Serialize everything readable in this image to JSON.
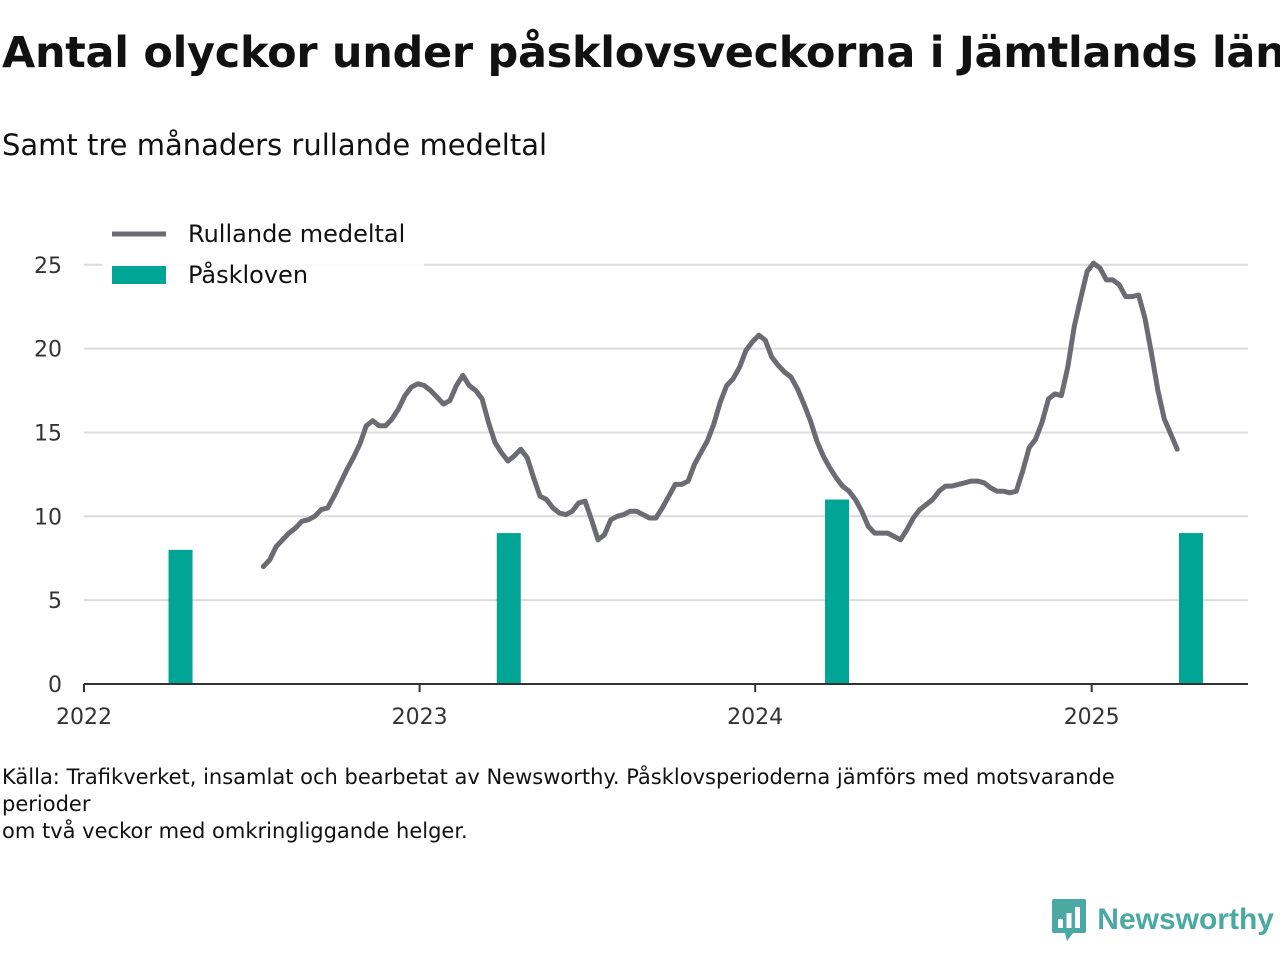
{
  "title": "Antal olyckor under påsklovsveckorna i Jämtlands län",
  "subtitle": "Samt tre månaders rullande medeltal",
  "footnote": {
    "line1": "Källa: Trafikverket, insamlat och bearbetat av Newsworthy. Påsklovsperioderna jämförs med motsvarande",
    "line2": "perioder",
    "line3": "om två veckor med omkringliggande helger."
  },
  "brand": {
    "name": "Newsworthy",
    "icon": "newsworthy-logo-icon",
    "color": "#4aa9a2"
  },
  "chart_data": {
    "type": "bar+line",
    "xlabel": "",
    "ylabel": "",
    "x_range": [
      "2022-01-01",
      "2025-06-20"
    ],
    "x_ticks": [
      "2022",
      "2023",
      "2024",
      "2025"
    ],
    "ylim": [
      0,
      26
    ],
    "y_ticks": [
      0,
      5,
      10,
      15,
      20,
      25
    ],
    "grid": true,
    "legend_position": "top-left",
    "series": [
      {
        "name": "Rullande medeltal",
        "kind": "line",
        "color": "#6b6b72",
        "points": [
          [
            "2022-07-15",
            7.0
          ],
          [
            "2022-07-22",
            7.4
          ],
          [
            "2022-07-29",
            8.2
          ],
          [
            "2022-08-05",
            8.6
          ],
          [
            "2022-08-12",
            9.0
          ],
          [
            "2022-08-19",
            9.3
          ],
          [
            "2022-08-26",
            9.7
          ],
          [
            "2022-09-02",
            9.8
          ],
          [
            "2022-09-09",
            10.0
          ],
          [
            "2022-09-16",
            10.4
          ],
          [
            "2022-09-23",
            10.5
          ],
          [
            "2022-09-30",
            11.2
          ],
          [
            "2022-10-07",
            12.0
          ],
          [
            "2022-10-14",
            12.8
          ],
          [
            "2022-10-21",
            13.5
          ],
          [
            "2022-10-28",
            14.3
          ],
          [
            "2022-11-04",
            15.4
          ],
          [
            "2022-11-11",
            15.7
          ],
          [
            "2022-11-18",
            15.4
          ],
          [
            "2022-11-25",
            15.4
          ],
          [
            "2022-12-02",
            15.8
          ],
          [
            "2022-12-09",
            16.4
          ],
          [
            "2022-12-16",
            17.2
          ],
          [
            "2022-12-23",
            17.7
          ],
          [
            "2022-12-30",
            17.9
          ],
          [
            "2023-01-06",
            17.8
          ],
          [
            "2023-01-13",
            17.5
          ],
          [
            "2023-01-20",
            17.1
          ],
          [
            "2023-01-27",
            16.7
          ],
          [
            "2023-02-03",
            16.9
          ],
          [
            "2023-02-10",
            17.8
          ],
          [
            "2023-02-17",
            18.4
          ],
          [
            "2023-02-24",
            17.8
          ],
          [
            "2023-03-03",
            17.5
          ],
          [
            "2023-03-10",
            17.0
          ],
          [
            "2023-03-17",
            15.6
          ],
          [
            "2023-03-24",
            14.4
          ],
          [
            "2023-03-31",
            13.8
          ],
          [
            "2023-04-07",
            13.3
          ],
          [
            "2023-04-14",
            13.6
          ],
          [
            "2023-04-21",
            14.0
          ],
          [
            "2023-04-28",
            13.5
          ],
          [
            "2023-05-05",
            12.3
          ],
          [
            "2023-05-12",
            11.2
          ],
          [
            "2023-05-19",
            11.0
          ],
          [
            "2023-05-26",
            10.5
          ],
          [
            "2023-06-02",
            10.2
          ],
          [
            "2023-06-09",
            10.1
          ],
          [
            "2023-06-16",
            10.3
          ],
          [
            "2023-06-23",
            10.8
          ],
          [
            "2023-06-30",
            10.9
          ],
          [
            "2023-07-07",
            9.8
          ],
          [
            "2023-07-14",
            8.6
          ],
          [
            "2023-07-21",
            8.9
          ],
          [
            "2023-07-28",
            9.8
          ],
          [
            "2023-08-04",
            10.0
          ],
          [
            "2023-08-11",
            10.1
          ],
          [
            "2023-08-18",
            10.3
          ],
          [
            "2023-08-25",
            10.3
          ],
          [
            "2023-09-01",
            10.1
          ],
          [
            "2023-09-08",
            9.9
          ],
          [
            "2023-09-15",
            9.9
          ],
          [
            "2023-09-22",
            10.5
          ],
          [
            "2023-09-29",
            11.2
          ],
          [
            "2023-10-06",
            11.9
          ],
          [
            "2023-10-13",
            11.9
          ],
          [
            "2023-10-20",
            12.1
          ],
          [
            "2023-10-27",
            13.1
          ],
          [
            "2023-11-03",
            13.8
          ],
          [
            "2023-11-10",
            14.5
          ],
          [
            "2023-11-17",
            15.5
          ],
          [
            "2023-11-24",
            16.8
          ],
          [
            "2023-12-01",
            17.8
          ],
          [
            "2023-12-08",
            18.2
          ],
          [
            "2023-12-15",
            18.9
          ],
          [
            "2023-12-22",
            19.9
          ],
          [
            "2023-12-29",
            20.4
          ],
          [
            "2024-01-05",
            20.8
          ],
          [
            "2024-01-12",
            20.5
          ],
          [
            "2024-01-19",
            19.5
          ],
          [
            "2024-01-26",
            19.0
          ],
          [
            "2024-02-02",
            18.6
          ],
          [
            "2024-02-09",
            18.3
          ],
          [
            "2024-02-16",
            17.6
          ],
          [
            "2024-02-23",
            16.7
          ],
          [
            "2024-03-01",
            15.7
          ],
          [
            "2024-03-08",
            14.5
          ],
          [
            "2024-03-15",
            13.6
          ],
          [
            "2024-03-22",
            12.9
          ],
          [
            "2024-03-29",
            12.3
          ],
          [
            "2024-04-05",
            11.8
          ],
          [
            "2024-04-12",
            11.5
          ],
          [
            "2024-04-19",
            11.0
          ],
          [
            "2024-04-26",
            10.3
          ],
          [
            "2024-05-03",
            9.4
          ],
          [
            "2024-05-10",
            9.0
          ],
          [
            "2024-05-17",
            9.0
          ],
          [
            "2024-05-24",
            9.0
          ],
          [
            "2024-05-31",
            8.8
          ],
          [
            "2024-06-07",
            8.6
          ],
          [
            "2024-06-14",
            9.2
          ],
          [
            "2024-06-21",
            9.9
          ],
          [
            "2024-06-28",
            10.4
          ],
          [
            "2024-07-05",
            10.7
          ],
          [
            "2024-07-12",
            11.0
          ],
          [
            "2024-07-19",
            11.5
          ],
          [
            "2024-07-26",
            11.8
          ],
          [
            "2024-08-02",
            11.8
          ],
          [
            "2024-08-09",
            11.9
          ],
          [
            "2024-08-16",
            12.0
          ],
          [
            "2024-08-23",
            12.1
          ],
          [
            "2024-08-30",
            12.1
          ],
          [
            "2024-09-06",
            12.0
          ],
          [
            "2024-09-13",
            11.7
          ],
          [
            "2024-09-20",
            11.5
          ],
          [
            "2024-09-27",
            11.5
          ],
          [
            "2024-10-04",
            11.4
          ],
          [
            "2024-10-11",
            11.5
          ],
          [
            "2024-10-18",
            12.7
          ],
          [
            "2024-10-25",
            14.1
          ],
          [
            "2024-11-01",
            14.6
          ],
          [
            "2024-11-08",
            15.6
          ],
          [
            "2024-11-15",
            17.0
          ],
          [
            "2024-11-22",
            17.3
          ],
          [
            "2024-11-29",
            17.2
          ],
          [
            "2024-12-06",
            18.9
          ],
          [
            "2024-12-13",
            21.3
          ],
          [
            "2024-12-20",
            23.0
          ],
          [
            "2024-12-27",
            24.6
          ],
          [
            "2025-01-03",
            25.1
          ],
          [
            "2025-01-10",
            24.8
          ],
          [
            "2025-01-17",
            24.1
          ],
          [
            "2025-01-24",
            24.1
          ],
          [
            "2025-01-31",
            23.8
          ],
          [
            "2025-02-07",
            23.1
          ],
          [
            "2025-02-14",
            23.1
          ],
          [
            "2025-02-21",
            23.2
          ],
          [
            "2025-02-28",
            21.8
          ],
          [
            "2025-03-07",
            19.7
          ],
          [
            "2025-03-14",
            17.5
          ],
          [
            "2025-03-21",
            15.8
          ],
          [
            "2025-03-28",
            14.9
          ],
          [
            "2025-04-04",
            14.0
          ]
        ]
      },
      {
        "name": "Påskloven",
        "kind": "bar",
        "color": "#00a596",
        "points": [
          [
            "2022-04-16",
            8
          ],
          [
            "2023-04-08",
            9
          ],
          [
            "2024-03-30",
            11
          ],
          [
            "2025-04-19",
            9
          ]
        ]
      }
    ]
  }
}
